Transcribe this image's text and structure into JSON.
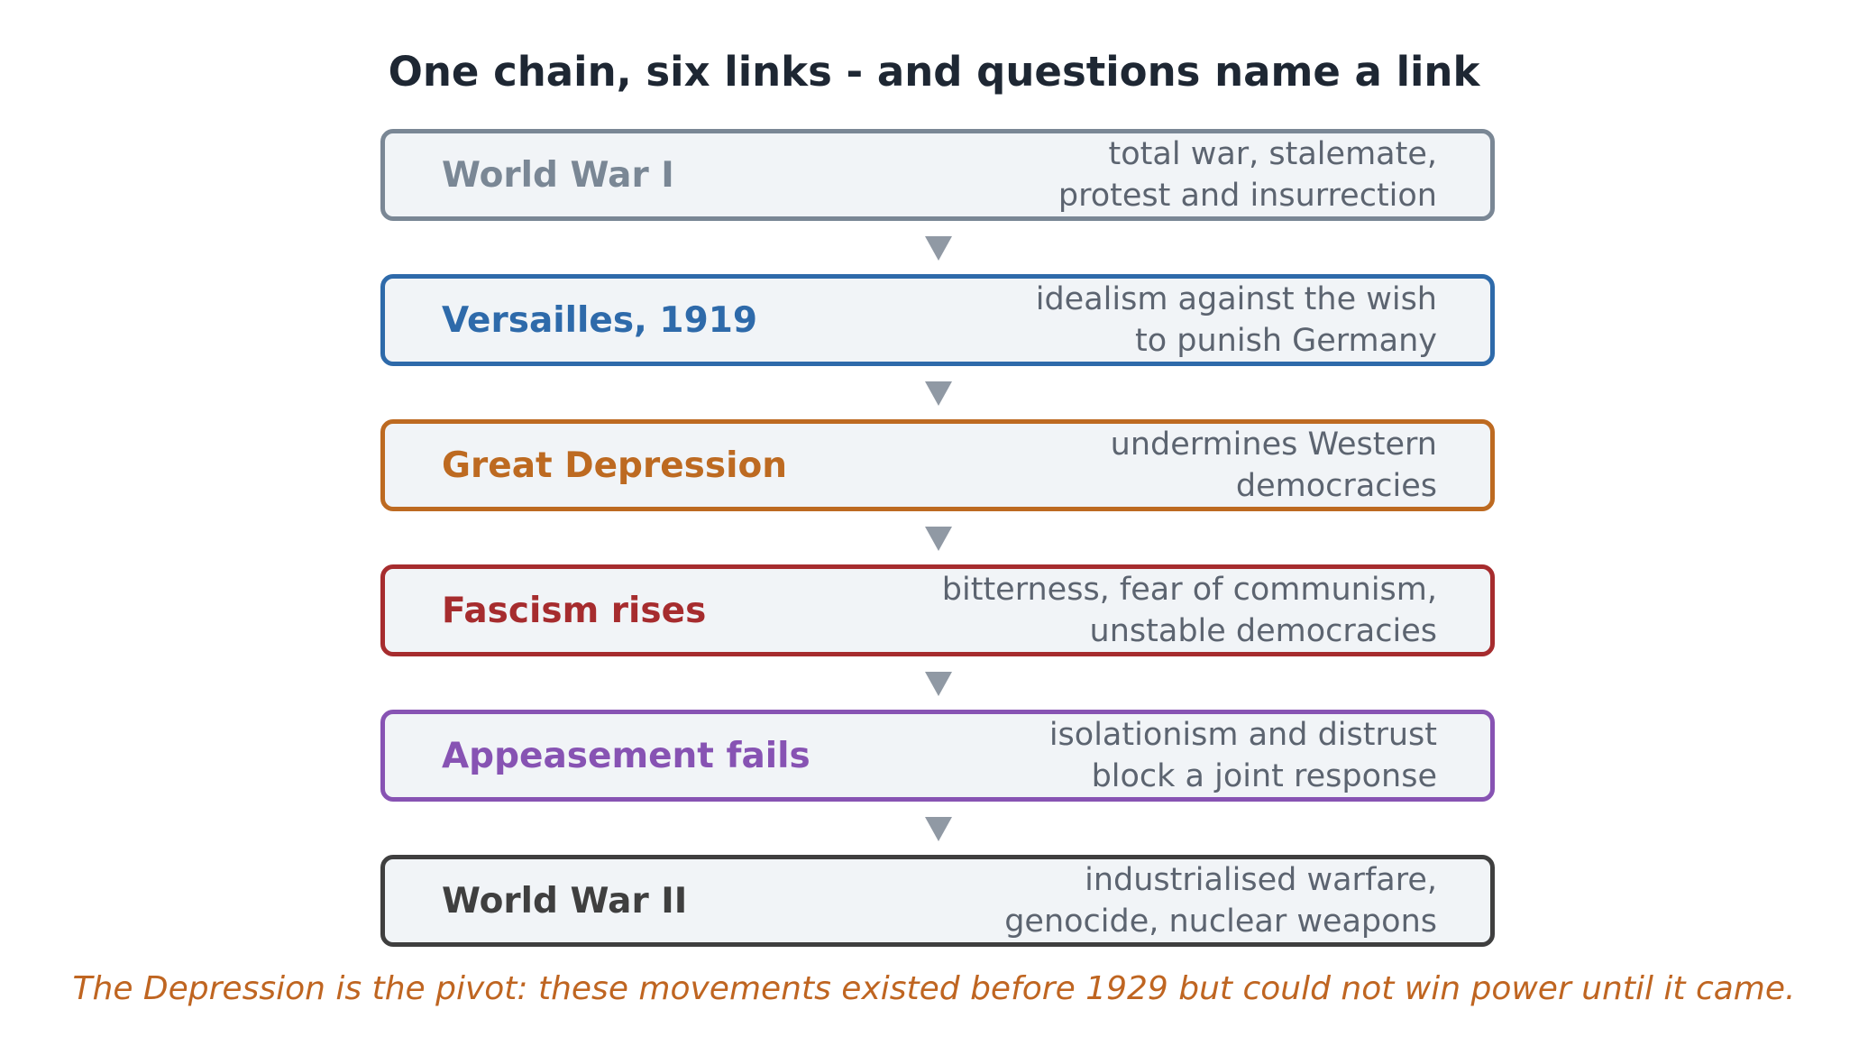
{
  "title": "One chain, six links - and questions name a link",
  "links": [
    {
      "label": "World War I",
      "desc": "total war, stalemate,\nprotest and insurrection",
      "color": "#7a8795"
    },
    {
      "label": "Versailles, 1919",
      "desc": "idealism against the wish\nto punish Germany",
      "color": "#2e6aaa"
    },
    {
      "label": "Great Depression",
      "desc": "undermines Western\ndemocracies",
      "color": "#bd6a21"
    },
    {
      "label": "Fascism rises",
      "desc": "bitterness, fear of communism,\nunstable democracies",
      "color": "#a62c2e"
    },
    {
      "label": "Appeasement fails",
      "desc": "isolationism and distrust\nblock a joint response",
      "color": "#8753b3"
    },
    {
      "label": "World War II",
      "desc": "industrialised warfare,\ngenocide, nuclear weapons",
      "color": "#3f3f3f"
    }
  ],
  "arrow_color": "#9099a4",
  "footer": "The Depression is the pivot: these movements existed before 1929 but could not win power until it came."
}
